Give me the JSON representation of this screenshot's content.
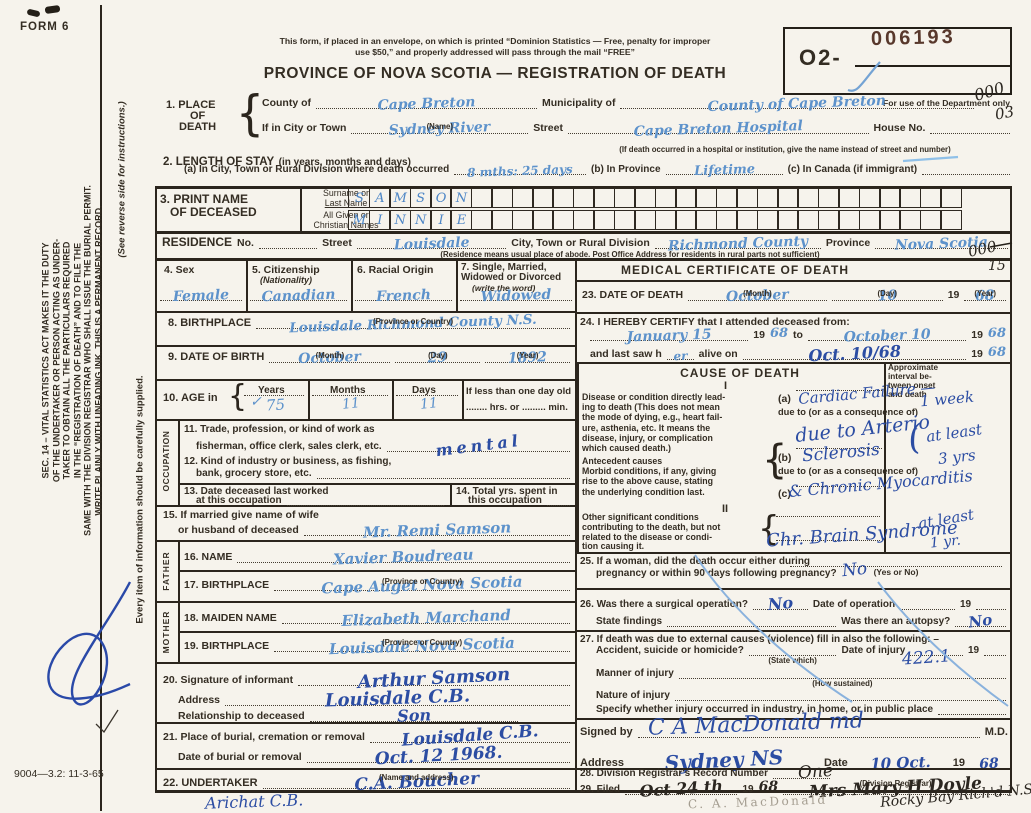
{
  "page": {
    "form_no": "FORM 6",
    "note1": "This form, if placed in an envelope, on which is printed “Dominion Statistics — Free, penalty for improper",
    "note2": "use $50,” and properly addressed will pass through the mail “FREE”",
    "title": "PROVINCE OF NOVA SCOTIA — REGISTRATION OF DEATH",
    "bottom_code": "9004—3.2: 11-3-65"
  },
  "stamp": {
    "prefix": "O2-",
    "serial": "006193",
    "caption": "For use of the Department only"
  },
  "margin": {
    "top_a": "000",
    "top_b": "03",
    "mid_a": "000",
    "mid_b": "15"
  },
  "sidebar": {
    "sec14_lines": [
      "SEC. 14 – VITAL STATISTICS ACT MAKES IT THE DUTY",
      "OF THE UNDERTAKER OR PERSON ACTING AS UNDER-",
      "TAKER TO OBTAIN ALL THE PARTICULARS REQUIRED",
      "IN THE “REGISTRATION OF DEATH” AND TO FILE THE",
      "SAME WITH THE DIVISION REGISTRAR WHO SHALL ISSUE THE BURIAL PERMIT.",
      "WRITE PLAINLY WITH UNFADING INK. THIS IS A PERMANENT RECORD."
    ],
    "see_reverse": "(See reverse side for instructions.)",
    "every_item": "Every item of information should be carefully supplied."
  },
  "s1": {
    "no": "1. PLACE",
    "of": "OF",
    "death": "DEATH",
    "county_label": "County of",
    "county": "Cape Breton",
    "municipality_label": "Municipality of",
    "municipality": "County of Cape Breton",
    "city_label": "If in City or Town",
    "city": "Sydney River",
    "name_cap": "(Name)",
    "street_label": "Street",
    "street": "Cape Breton Hospital",
    "house_label": "House No.",
    "hospital_cap": "(If death occurred in a hospital or institution, give the name instead of street and number)"
  },
  "s2": {
    "label": "2. LENGTH OF STAY",
    "label2": "(in years, months and days)",
    "a_label": "(a) In City, Town or Rural Division where death occurred",
    "a": "8 mths: 25 days",
    "b_label": "(b) In Province",
    "b": "Lifetime",
    "c_label": "(c) In Canada (if immigrant)"
  },
  "s3": {
    "no": "3. PRINT NAME",
    "no2": "OF DECEASED",
    "surname_label1": "Surname or",
    "surname_label2": "Last Name",
    "given_label1": "All Given or",
    "given_label2": "Christian Names",
    "surname": "SAMSON",
    "given": "MINNIE",
    "box_count": 30,
    "residence_label": "RESIDENCE",
    "no_label": "No.",
    "street_label": "Street",
    "street": "Louisdale",
    "division_label": "City, Town or Rural Division",
    "division": "Richmond County",
    "province_label": "Province",
    "province": "Nova Scotia",
    "cap": "(Residence means usual place of abode. Post Office Address for residents in rural parts not sufficient)"
  },
  "s4": {
    "label": "4. Sex",
    "value": "Female"
  },
  "s5": {
    "label": "5. Citizenship",
    "label2": "(Nationality)",
    "value": "Canadian"
  },
  "s6": {
    "label": "6. Racial Origin",
    "value": "French"
  },
  "s7": {
    "label1": "7. Single, Married,",
    "label2": "Widowed or Divorced",
    "label3": "(write the word)",
    "value": "Widowed"
  },
  "s8": {
    "label": "8. BIRTHPLACE",
    "value": "Louisdale Richmond County N.S.",
    "cap": "(Province or Country)"
  },
  "s9": {
    "label": "9. DATE OF BIRTH",
    "month": "October",
    "month_cap": "(Month)",
    "day": "29",
    "day_cap": "(Day)",
    "year": "1892",
    "year_cap": "(Year)"
  },
  "s10": {
    "label": "10. AGE in",
    "years_label": "Years",
    "check": "✓",
    "years": "75",
    "months_label": "Months",
    "months": "11",
    "days_label": "Days",
    "days": "11",
    "less_label": "If less than one day old",
    "less_label2": "........ hrs. or ......... min."
  },
  "occ": {
    "strip": "OCCUPATION",
    "s11a": "11. Trade, profession, or kind of work as",
    "s11b": "fisherman, office clerk, sales clerk, etc.",
    "s11v": "mental",
    "s12a": "12. Kind of industry or business, as fishing,",
    "s12b": "bank, grocery store, etc.",
    "s13a": "13. Date deceased last worked",
    "s13b": "at this occupation",
    "s14a": "14. Total yrs. spent in",
    "s14b": "this occupation"
  },
  "s15": {
    "label1": "15. If married give name of wife",
    "label2": "or husband of deceased",
    "value": "Mr. Remi Samson"
  },
  "father": {
    "strip": "FATHER",
    "name_label": "16. NAME",
    "name": "Xavier Boudreau",
    "bp_label": "17. BIRTHPLACE",
    "bp": "Cape Auget   Nova Scotia",
    "cap": "(Province or Country)"
  },
  "mother": {
    "strip": "MOTHER",
    "name_label": "18. MAIDEN NAME",
    "name": "Elizabeth Marchand",
    "bp_label": "19. BIRTHPLACE",
    "bp": "Louisdale   Nova Scotia",
    "cap": "(Province or Country)"
  },
  "s20": {
    "label": "20. Signature of informant",
    "value": "Arthur Samson",
    "addr_label": "Address",
    "addr": "Louisdale   C.B.",
    "rel_label": "Relationship to deceased",
    "rel": "Son"
  },
  "s21": {
    "label": "21. Place of burial, cremation or removal",
    "value": "Louisdale  C.B.",
    "date_label": "Date of burial or removal",
    "date": "Oct. 12 1968."
  },
  "s22": {
    "label": "22. UNDERTAKER",
    "value": "C.A. Boucher",
    "value2": "Arichat C.B.",
    "cap": "(Name and address)"
  },
  "med": {
    "header": "MEDICAL CERTIFICATE OF DEATH",
    "s23_label": "23. DATE OF DEATH",
    "s23_month": "October",
    "month_cap": "(Month)",
    "s23_day": "10",
    "day_cap": "(Day)",
    "pre": "19",
    "s23_year": "68",
    "year_cap": "(Year)",
    "s24_label": "24. I HEREBY CERTIFY that I attended deceased from:",
    "s24_from": "January 15",
    "s24_fromyr": "68",
    "to_label": "to",
    "s24_to": "October 10",
    "s24_toyr": "68",
    "s24_last1": "and last saw h",
    "s24_h": "er",
    "s24_last2": "alive on",
    "s24_lastdate": "Oct. 10/68",
    "s24_lastyr": "68",
    "cause_header": "CAUSE OF DEATH",
    "interval_header": [
      "Approximate",
      "interval be-",
      "tween onset",
      "and death"
    ],
    "roman1": "I",
    "disease_lines": [
      "Disease or condition directly lead-",
      "ing to death (This does not mean",
      "the mode of dying, e.g., heart fail-",
      "ure, asthenia, etc. It means the",
      "disease, injury, or complication",
      "which caused death.)"
    ],
    "antecedent_lines": [
      "Antecedent causes",
      "Morbid conditions, if any, giving",
      "rise to the above cause, stating",
      "the underlying condition last."
    ],
    "a_label": "(a)",
    "a_value": "Cardiac Failure —",
    "a_interval": "1 week",
    "due1": "due to (or as a consequence of)",
    "due_value": "due to Arterio",
    "b_label": "(b)",
    "b_value": "Sclerosis",
    "due2": "due to (or as a consequence of)",
    "c_label": "(c)",
    "c_value": "& Chronic Myocarditis",
    "bc_paren": "(",
    "bc_interval1": "at least",
    "bc_interval2": "3 yrs",
    "roman2": "II",
    "other_lines": [
      "Other significant conditions",
      "contributing to the death, but not",
      "related to the disease or condi-",
      "tion causing it."
    ],
    "other_value": "Chr. Brain Syndrome",
    "other_interval1": "at least",
    "other_interval2": "1 yr.",
    "s25_label1": "25. If a woman, did the death occur either during",
    "s25_label2": "pregnancy or within 90 days following pregnancy?",
    "s25_value": "No",
    "s25_cap": "(Yes or No)",
    "s26_label": "26. Was there a surgical operation?",
    "s26_value": "No",
    "s26_date_label": "Date of operation",
    "s26_find_label": "State findings",
    "s26_autopsy_label": "Was there an autopsy?",
    "s26_autopsy": "No",
    "s27_label": "27. If death was due to external causes (violence) fill in also the following: –",
    "s27_acc_label": "Accident, suicide or homicide?",
    "s27_which_cap": "(State which)",
    "s27_injury_label": "Date of injury",
    "s27_code": "422.1",
    "s27_manner_label": "Manner of injury",
    "s27_how_cap": "(How sustained)",
    "s27_nature_label": "Nature of injury",
    "s27_specify": "Specify whether injury occurred in industry, in home, or in public place",
    "signed_label": "Signed by",
    "signed_value": "C A MacDonald md",
    "md": "M.D.",
    "addr_label": "Address",
    "addr_value": "Sydney NS",
    "date_label": "Date",
    "date_value": "10 Oct.",
    "date_yr": "68",
    "s28_label": "28. Division Registrar's Record Number",
    "s28_value": "One",
    "s29_label": "29. Filed",
    "s29_date": "Oct 24 th",
    "s29_yr": "68",
    "s29_registrar": "Mrs Mary H Doyle",
    "s29_cap": "(Division Registrar)",
    "s29_place": "Rocky Bay Rich'd N.S.",
    "pencil": "C. A. MacDonald"
  }
}
